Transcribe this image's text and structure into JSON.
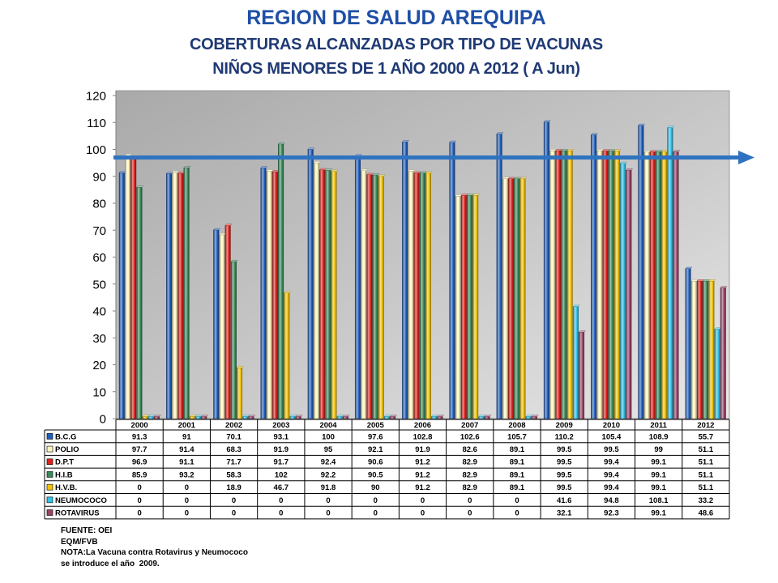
{
  "chart_data": {
    "type": "bar",
    "title": "REGION DE SALUD AREQUIPA",
    "subtitle": [
      "COBERTURAS ALCANZADAS POR TIPO DE VACUNAS",
      "NIÑOS MENORES DE 1 AÑO 2000 A 2012 ( A Jun)"
    ],
    "categories": [
      "2000",
      "2001",
      "2002",
      "2003",
      "2004",
      "2005",
      "2006",
      "2007",
      "2008",
      "2009",
      "2010",
      "2011",
      "2012"
    ],
    "ylim": [
      0,
      120
    ],
    "yticks": [
      0,
      10,
      20,
      30,
      40,
      50,
      60,
      70,
      80,
      90,
      100,
      110,
      120
    ],
    "grid": false,
    "legend": "bottom",
    "series": [
      {
        "name": "B.C.G",
        "color": "#1e5fbe",
        "values": [
          91.3,
          91,
          70.1,
          93.1,
          100,
          97.6,
          102.8,
          102.6,
          105.7,
          110.2,
          105.4,
          108.9,
          55.7
        ]
      },
      {
        "name": "POLIO",
        "color": "#fff6bd",
        "values": [
          97.7,
          91.4,
          68.3,
          91.9,
          95,
          92.1,
          91.9,
          82.6,
          89.1,
          99.5,
          99.5,
          99,
          51.1
        ]
      },
      {
        "name": "D.P.T",
        "color": "#e0201c",
        "values": [
          96.9,
          91.1,
          71.7,
          91.7,
          92.4,
          90.6,
          91.2,
          82.9,
          89.1,
          99.5,
          99.4,
          99.1,
          51.1
        ]
      },
      {
        "name": "H.I.B",
        "color": "#3a8a5a",
        "values": [
          85.9,
          93.2,
          58.3,
          102,
          92.2,
          90.5,
          91.2,
          82.9,
          89.1,
          99.5,
          99.4,
          99.1,
          51.1
        ]
      },
      {
        "name": "H.V.B.",
        "color": "#f5c400",
        "values": [
          0,
          0,
          18.9,
          46.7,
          91.8,
          90,
          91.2,
          82.9,
          89.1,
          99.5,
          99.4,
          99.1,
          51.1
        ]
      },
      {
        "name": "NEUMOCOCO",
        "color": "#2fc3ea",
        "values": [
          0,
          0,
          0,
          0,
          0,
          0,
          0,
          0,
          0,
          41.6,
          94.8,
          108.1,
          33.2
        ]
      },
      {
        "name": "ROTAVIRUS",
        "color": "#9b4266",
        "values": [
          0,
          0,
          0,
          0,
          0,
          0,
          0,
          0,
          0,
          32.1,
          92.3,
          99.1,
          48.6
        ]
      }
    ],
    "reference_arrow": {
      "value": 97,
      "color": "#2f73c0"
    }
  },
  "footer": {
    "lines": [
      "FUENTE: OEI",
      "EQM/FVB",
      "NOTA:La Vacuna contra Rotavirus y Neumococo",
      "se introduce el año  2009."
    ]
  }
}
